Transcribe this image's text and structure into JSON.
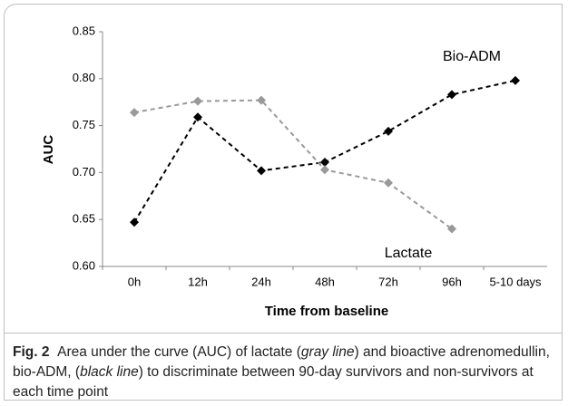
{
  "chart_data": {
    "type": "line",
    "xlabel": "Time from baseline",
    "ylabel": "AUC",
    "categories": [
      "0h",
      "12h",
      "24h",
      "48h",
      "72h",
      "96h",
      "5-10 days"
    ],
    "series": [
      {
        "name": "Bio-ADM",
        "color": "#000000",
        "values": [
          0.647,
          0.759,
          0.702,
          0.711,
          0.744,
          0.783,
          0.798
        ]
      },
      {
        "name": "Lactate",
        "color": "#999999",
        "values": [
          0.764,
          0.776,
          0.777,
          0.703,
          0.689,
          0.64,
          null
        ]
      }
    ],
    "ylim": [
      0.6,
      0.85
    ],
    "yticks": [
      {
        "value": 0.6,
        "label": "0.60"
      },
      0.65,
      {
        "value": 0.7,
        "label": "0.70"
      },
      0.75,
      {
        "value": 0.8,
        "label": "0.80"
      },
      0.85
    ],
    "grid": false,
    "line_style": "dashed",
    "marker": "diamond"
  },
  "caption": {
    "label": "Fig. 2",
    "segments": [
      "Area under the curve (AUC) of lactate (",
      "gray line",
      ") and bioactive adrenomedullin, bio-ADM, (",
      "black line",
      ") to discriminate between 90-day survivors and non-survivors at each time point"
    ]
  }
}
